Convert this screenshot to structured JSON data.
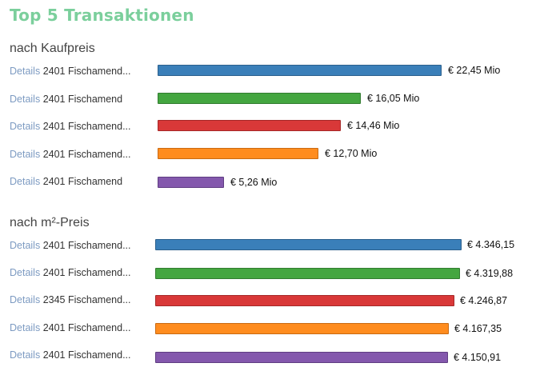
{
  "title": "Top 5 Transaktionen",
  "colors": {
    "title": "#7bcf9c",
    "details_link": "#7d9bc2",
    "bars": [
      "#3a7fb9",
      "#44a640",
      "#d93838",
      "#ff8c1e",
      "#8458ad"
    ],
    "bar_borders": [
      "#2b608d",
      "#327c30",
      "#a62828",
      "#c96a12",
      "#5f3d82"
    ]
  },
  "chart_data": [
    {
      "type": "bar",
      "orientation": "horizontal",
      "title": "nach Kaufpreis",
      "details_label": "Details",
      "categories": [
        "2401 Fischamend...",
        "2401 Fischamend",
        "2401 Fischamend...",
        "2401 Fischamend...",
        "2401 Fischamend"
      ],
      "values": [
        22.45,
        16.05,
        14.46,
        12.7,
        5.26
      ],
      "value_labels": [
        "€ 22,45 Mio",
        "€ 16,05 Mio",
        "€ 14,46 Mio",
        "€ 12,70 Mio",
        "€ 5,26 Mio"
      ],
      "xlim": [
        0,
        22.45
      ]
    },
    {
      "type": "bar",
      "orientation": "horizontal",
      "title": "nach m²-Preis",
      "details_label": "Details",
      "categories": [
        "2401 Fischamend...",
        "2401 Fischamend...",
        "2345 Fischamend...",
        "2401 Fischamend...",
        "2401 Fischamend..."
      ],
      "values": [
        4346.15,
        4319.88,
        4246.87,
        4167.35,
        4150.91
      ],
      "value_labels": [
        "€ 4.346,15",
        "€ 4.319,88",
        "€ 4.246,87",
        "€ 4.167,35",
        "€ 4.150,91"
      ],
      "xlim": [
        0,
        4346.15
      ]
    }
  ]
}
